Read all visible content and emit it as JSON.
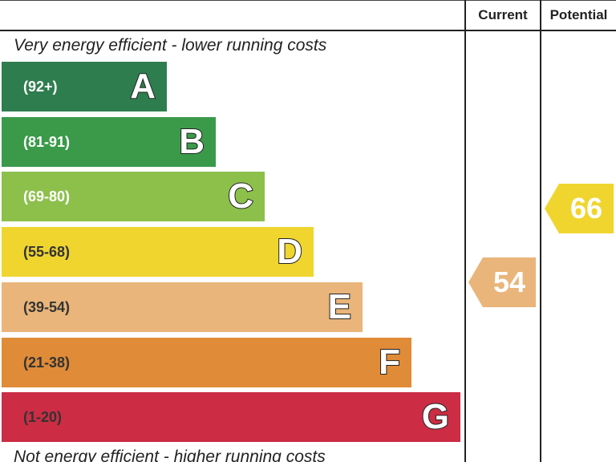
{
  "chart_data": {
    "type": "bar",
    "title": "",
    "column_headers": {
      "current": "Current",
      "potential": "Potential"
    },
    "top_caption": "Very energy efficient - lower running costs",
    "bottom_caption": "Not energy efficient - higher running costs",
    "bands": [
      {
        "letter": "A",
        "range": "(92+)",
        "color": "#2e7d4f",
        "text_dark": false
      },
      {
        "letter": "B",
        "range": "(81-91)",
        "color": "#3a9a4a",
        "text_dark": false
      },
      {
        "letter": "C",
        "range": "(69-80)",
        "color": "#8cc04b",
        "text_dark": false
      },
      {
        "letter": "D",
        "range": "(55-68)",
        "color": "#f0d52f",
        "text_dark": true
      },
      {
        "letter": "E",
        "range": "(39-54)",
        "color": "#e9b57a",
        "text_dark": true
      },
      {
        "letter": "F",
        "range": "(21-38)",
        "color": "#e08b38",
        "text_dark": true
      },
      {
        "letter": "G",
        "range": "(1-20)",
        "color": "#cc2c44",
        "text_dark": true
      }
    ],
    "current": {
      "value": 54,
      "label": "54",
      "band": "E",
      "color": "#e9b57a"
    },
    "potential": {
      "value": 66,
      "label": "66",
      "band": "D",
      "color": "#f0d52f"
    }
  }
}
